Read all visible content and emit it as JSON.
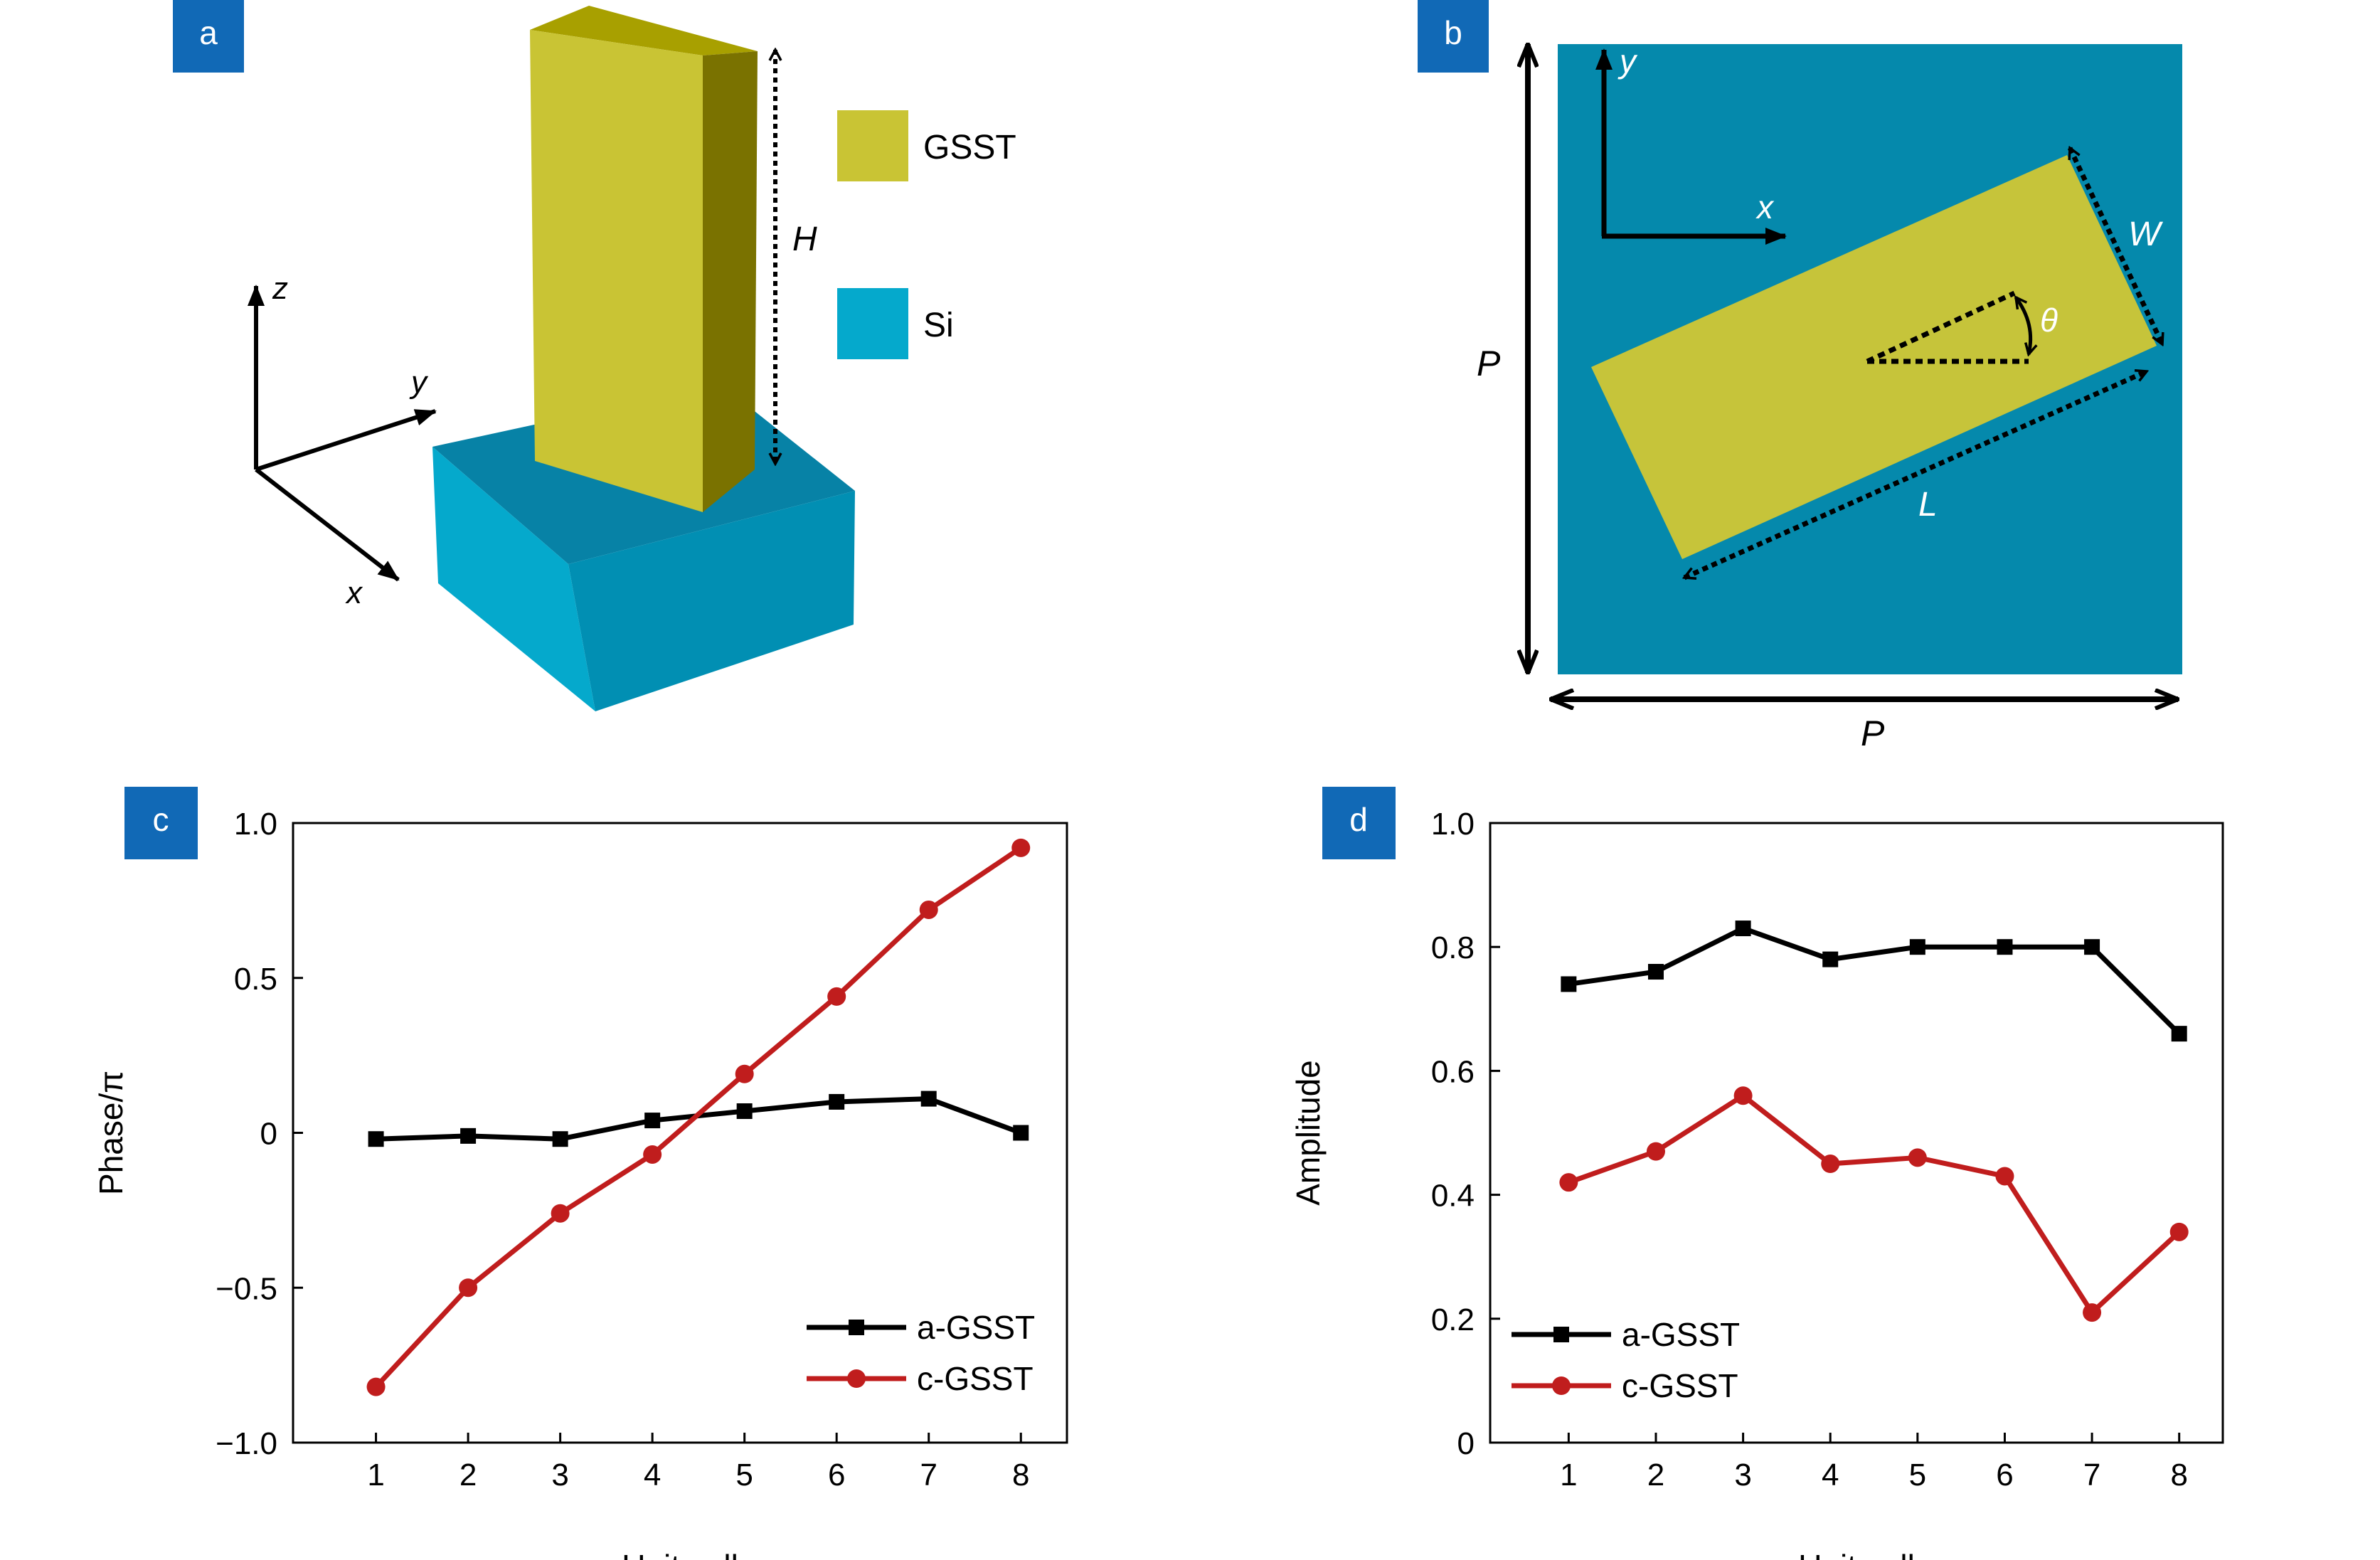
{
  "panel_labels": {
    "a": "a",
    "b": "b",
    "c": "c",
    "d": "d"
  },
  "colors": {
    "panel_label_bg": "#1169b6",
    "gsst_front": "#c9c434",
    "gsst_side": "#7a7200",
    "gsst_top": "#a8a000",
    "si_front": "#05a9cc",
    "si_side": "#018fb3",
    "si_top": "#0782a6",
    "substrate_b": "#0589ac",
    "rect_b": "#c6c43a",
    "a_gsst": "#000000",
    "c_gsst": "#c01d1d"
  },
  "panel_a": {
    "legend": [
      {
        "label": "GSST",
        "color": "#c9c434"
      },
      {
        "label": "Si",
        "color": "#05a9cc"
      }
    ],
    "axes": {
      "z": "z",
      "y": "y",
      "x": "x"
    },
    "height_label": "H"
  },
  "panel_b": {
    "axes": {
      "y": "y",
      "x": "x"
    },
    "labels": {
      "W": "W",
      "theta": "θ",
      "L": "L",
      "P_vertical": "P",
      "P_horizontal": "P"
    }
  },
  "chart_data": [
    {
      "type": "line",
      "panel": "c",
      "xlabel": "Unit cell",
      "ylabel": "Phase/π",
      "x": [
        1,
        2,
        3,
        4,
        5,
        6,
        7,
        8
      ],
      "xlim": [
        0.1,
        8.5
      ],
      "ylim": [
        -1.0,
        1.0
      ],
      "yticks": [
        -1.0,
        -0.5,
        0,
        0.5,
        1.0
      ],
      "ytick_labels": [
        "−1.0",
        "−0.5",
        "0",
        "0.5",
        "1.0"
      ],
      "xtick_labels": [
        "1",
        "2",
        "3",
        "4",
        "5",
        "6",
        "7",
        "8"
      ],
      "legend_position": "bottom-right",
      "series": [
        {
          "name": "a-GSST",
          "marker": "square",
          "color": "#000000",
          "values": [
            -0.02,
            -0.01,
            -0.02,
            0.04,
            0.07,
            0.1,
            0.11,
            0.0
          ]
        },
        {
          "name": "c-GSST",
          "marker": "circle",
          "color": "#c01d1d",
          "values": [
            -0.82,
            -0.5,
            -0.26,
            -0.07,
            0.19,
            0.44,
            0.72,
            0.92
          ]
        }
      ]
    },
    {
      "type": "line",
      "panel": "d",
      "xlabel": "Unit cell",
      "ylabel": "Amplitude",
      "x": [
        1,
        2,
        3,
        4,
        5,
        6,
        7,
        8
      ],
      "xlim": [
        0.1,
        8.5
      ],
      "ylim": [
        0,
        1.0
      ],
      "yticks": [
        0,
        0.2,
        0.4,
        0.6,
        0.8,
        1.0
      ],
      "ytick_labels": [
        "0",
        "0.2",
        "0.4",
        "0.6",
        "0.8",
        "1.0"
      ],
      "xtick_labels": [
        "1",
        "2",
        "3",
        "4",
        "5",
        "6",
        "7",
        "8"
      ],
      "legend_position": "bottom-left",
      "series": [
        {
          "name": "a-GSST",
          "marker": "square",
          "color": "#000000",
          "values": [
            0.74,
            0.76,
            0.83,
            0.78,
            0.8,
            0.8,
            0.8,
            0.66
          ]
        },
        {
          "name": "c-GSST",
          "marker": "circle",
          "color": "#c01d1d",
          "values": [
            0.42,
            0.47,
            0.56,
            0.45,
            0.46,
            0.43,
            0.21,
            0.34
          ]
        }
      ]
    }
  ]
}
